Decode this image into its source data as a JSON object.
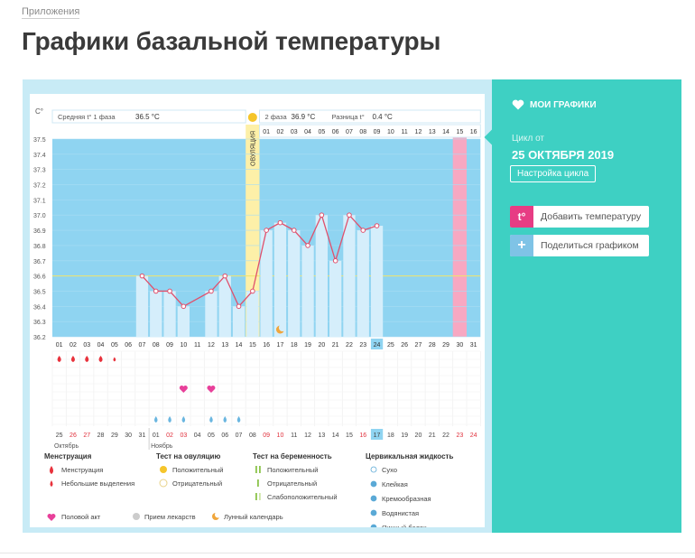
{
  "header": {
    "breadcrumb": "Приложения",
    "title": "Графики базальной температуры"
  },
  "sidebar": {
    "my_charts": "МОИ ГРАФИКИ",
    "cycle_label": "Цикл от",
    "cycle_date": "25 ОКТЯБРЯ 2019",
    "cycle_settings": "Настройка цикла",
    "add_temperature": "Добавить температуру",
    "add_temperature_icon": "t°",
    "share_chart": "Поделиться графиком",
    "share_icon": "+"
  },
  "chart_data": {
    "type": "line",
    "y_unit": "С°",
    "ylim": [
      36.2,
      37.5
    ],
    "y_ticks": [
      "37.5",
      "37.4",
      "37.3",
      "37.2",
      "37.1",
      "37.0",
      "36.9",
      "36.8",
      "36.7",
      "36.6",
      "36.5",
      "36.4",
      "36.3",
      "36.2"
    ],
    "phase1_label": "Средняя t° 1 фаза",
    "phase1_value": "36.5 °C",
    "phase2_label": "2 фаза",
    "phase2_value": "36.9 °C",
    "diff_label": "Разница t°",
    "diff_value": "0.4 °C",
    "ovulation_label": "ОВУЛЯЦИЯ",
    "cycle_days": [
      "01",
      "02",
      "03",
      "04",
      "05",
      "06",
      "07",
      "08",
      "09",
      "10",
      "11",
      "12",
      "13",
      "14",
      "15",
      "16",
      "17",
      "18",
      "19",
      "20",
      "21",
      "22",
      "23",
      "24",
      "25",
      "26",
      "27",
      "28",
      "29",
      "30",
      "31"
    ],
    "phase2_days": [
      "01",
      "02",
      "03",
      "04",
      "05",
      "06",
      "07",
      "08",
      "09",
      "10",
      "11",
      "12",
      "13",
      "14",
      "15",
      "16"
    ],
    "temperatures": [
      null,
      null,
      null,
      null,
      null,
      null,
      36.6,
      36.5,
      36.5,
      36.4,
      null,
      36.5,
      36.6,
      36.4,
      36.5,
      36.9,
      36.95,
      36.9,
      36.8,
      37.0,
      36.7,
      37.0,
      36.9,
      36.93,
      null,
      null,
      null,
      null,
      null,
      null,
      null
    ],
    "dates": [
      "25",
      "26",
      "27",
      "28",
      "29",
      "30",
      "31",
      "01",
      "02",
      "03",
      "04",
      "05",
      "06",
      "07",
      "08",
      "09",
      "10",
      "11",
      "12",
      "13",
      "14",
      "15",
      "16",
      "17",
      "18",
      "19",
      "20",
      "21",
      "22",
      "23",
      "24"
    ],
    "months": [
      "Октябрь",
      "Ноябрь"
    ],
    "menstruation_days": [
      1,
      2,
      3,
      4,
      5
    ],
    "sex_days": [
      10,
      12
    ],
    "cervical_days": [
      8,
      9,
      10,
      12,
      13,
      14
    ],
    "highlight_day": 24
  },
  "legend": {
    "menstruation": {
      "title": "Менструация",
      "items": [
        "Менструация",
        "Небольшие выделения"
      ]
    },
    "ovulation_test": {
      "title": "Тест на овуляцию",
      "items": [
        "Положительный",
        "Отрицательный"
      ]
    },
    "pregnancy_test": {
      "title": "Тест на беременность",
      "items": [
        "Положительный",
        "Отрицательный",
        "Слабоположительный"
      ]
    },
    "cervical": {
      "title": "Цервикальная жидкость",
      "items": [
        "Сухо",
        "Клейкая",
        "Кремообразная",
        "Водянистая",
        "Яичный белок"
      ]
    },
    "bottom": [
      "Половой акт",
      "Прием лекарств",
      "Лунный календарь"
    ]
  },
  "colors": {
    "accent": "#3ed0c3",
    "chart_bg": "#8fd4f1",
    "bar": "#d5eefb",
    "line": "#e0506c",
    "ovulation": "#fdf0a8",
    "pink_column": "#f7a8c2",
    "blood": "#e8323c"
  }
}
